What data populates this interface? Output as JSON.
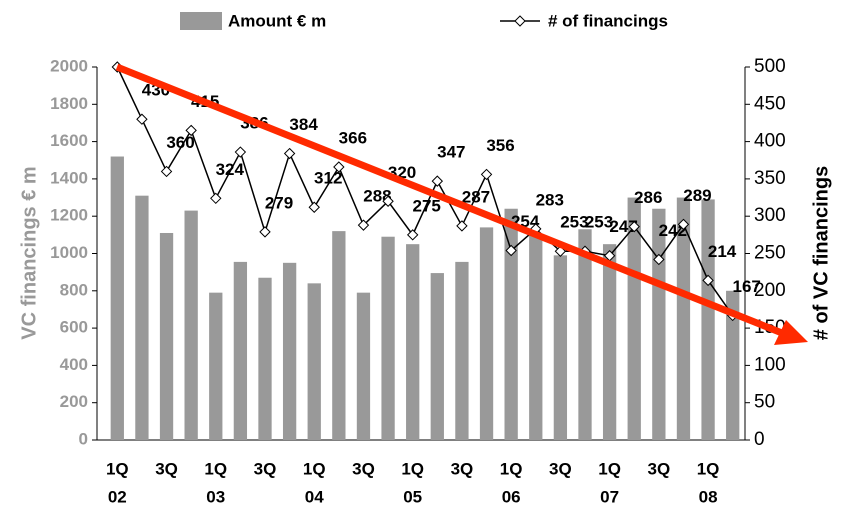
{
  "chart_data": {
    "type": "bar-line",
    "categories": [
      [
        "1Q",
        "02"
      ],
      null,
      [
        "3Q"
      ],
      null,
      [
        "1Q",
        "03"
      ],
      null,
      [
        "3Q"
      ],
      null,
      [
        "1Q",
        "04"
      ],
      null,
      [
        "3Q"
      ],
      null,
      [
        "1Q",
        "05"
      ],
      null,
      [
        "3Q"
      ],
      null,
      [
        "1Q",
        "06"
      ],
      null,
      [
        "3Q"
      ],
      null,
      [
        "1Q",
        "07"
      ],
      null,
      [
        "3Q"
      ],
      null,
      [
        "1Q",
        "08"
      ],
      null
    ],
    "series": [
      {
        "name": "Amount € m",
        "color": "#999999",
        "axis": "y",
        "values": [
          1520,
          1310,
          1110,
          1230,
          790,
          955,
          870,
          950,
          840,
          1120,
          790,
          1090,
          1050,
          895,
          955,
          1140,
          1240,
          1100,
          990,
          1130,
          1050,
          1300,
          1240,
          1300,
          1290,
          800
        ]
      },
      {
        "name": "# of financings",
        "color": "#000000",
        "axis": "y2",
        "values": [
          500,
          430,
          360,
          415,
          324,
          386,
          279,
          384,
          312,
          366,
          288,
          320,
          275,
          347,
          287,
          356,
          254,
          283,
          253,
          253,
          247,
          286,
          242,
          289,
          214,
          167
        ],
        "value_labels": [
          null,
          "430",
          "360",
          "415",
          "324",
          "386",
          "279",
          "384",
          "312",
          "366",
          "288",
          "320",
          "275",
          "347",
          "287",
          "356",
          "254",
          "283",
          "253",
          "253",
          "247",
          "286",
          "242",
          "289",
          "214",
          "167"
        ]
      }
    ],
    "ylabel": "VC financings € m",
    "y2label": "# of VC financings",
    "ylim": [
      0,
      2000
    ],
    "yticks": [
      0,
      200,
      400,
      600,
      800,
      1000,
      1200,
      1400,
      1600,
      1800,
      2000
    ],
    "y2lim": [
      0,
      500
    ],
    "y2ticks": [
      0,
      50,
      100,
      150,
      200,
      250,
      300,
      350,
      400,
      450,
      500
    ]
  }
}
